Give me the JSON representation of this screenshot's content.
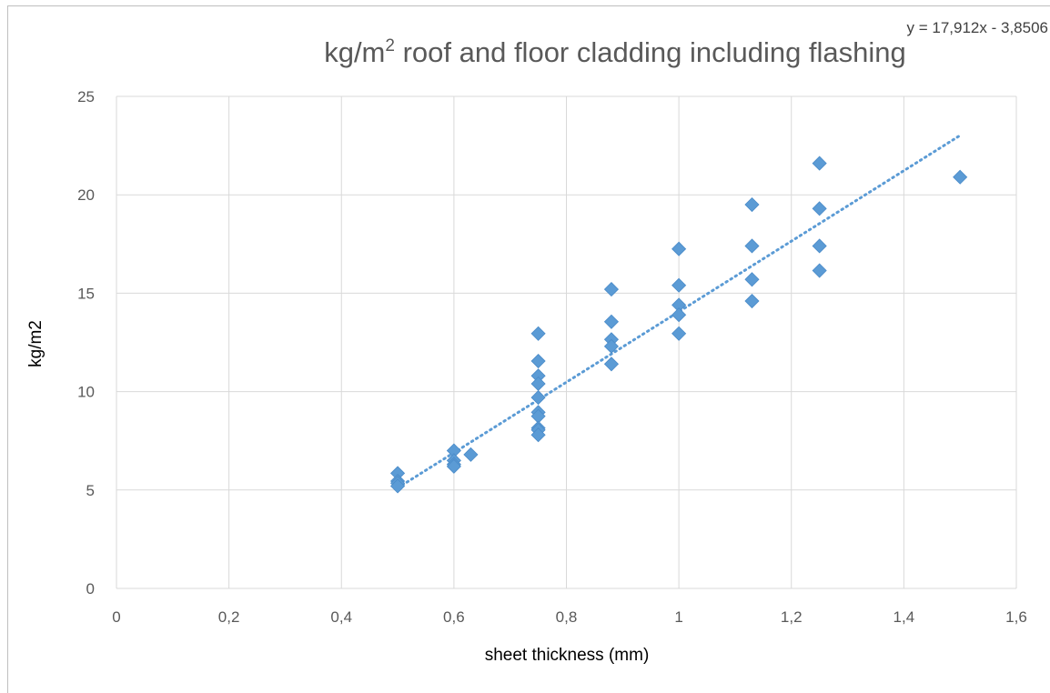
{
  "chart_data": {
    "type": "scatter",
    "title_main": "kg/m",
    "title_sup": "2",
    "title_rest": " roof and floor cladding including flashing",
    "trendline_label": "y = 17,912x - 3,8506",
    "xlabel": "sheet thickness (mm)",
    "ylabel": "kg/m2",
    "xlim": [
      0,
      1.6
    ],
    "ylim": [
      0,
      25
    ],
    "x_ticks": [
      0,
      0.2,
      0.4,
      0.6,
      0.8,
      1,
      1.2,
      1.4,
      1.6
    ],
    "x_tick_labels": [
      "0",
      "0,2",
      "0,4",
      "0,6",
      "0,8",
      "1",
      "1,2",
      "1,4",
      "1,6"
    ],
    "y_ticks": [
      0,
      5,
      10,
      15,
      20,
      25
    ],
    "y_tick_labels": [
      "0",
      "5",
      "10",
      "15",
      "20",
      "25"
    ],
    "grid": true,
    "marker": "diamond",
    "series_color": "#5b9bd5",
    "trendline": {
      "slope": 17.912,
      "intercept": -3.8506,
      "x_range": [
        0.5,
        1.5
      ],
      "style": "dotted"
    },
    "points": [
      {
        "x": 0.5,
        "y": 5.85
      },
      {
        "x": 0.5,
        "y": 5.45
      },
      {
        "x": 0.5,
        "y": 5.35
      },
      {
        "x": 0.5,
        "y": 5.2
      },
      {
        "x": 0.6,
        "y": 7.0
      },
      {
        "x": 0.6,
        "y": 6.5
      },
      {
        "x": 0.6,
        "y": 6.3
      },
      {
        "x": 0.6,
        "y": 6.2
      },
      {
        "x": 0.63,
        "y": 6.8
      },
      {
        "x": 0.75,
        "y": 12.95
      },
      {
        "x": 0.75,
        "y": 11.55
      },
      {
        "x": 0.75,
        "y": 10.8
      },
      {
        "x": 0.75,
        "y": 10.4
      },
      {
        "x": 0.75,
        "y": 9.7
      },
      {
        "x": 0.75,
        "y": 8.95
      },
      {
        "x": 0.75,
        "y": 8.75
      },
      {
        "x": 0.75,
        "y": 8.15
      },
      {
        "x": 0.75,
        "y": 8.05
      },
      {
        "x": 0.75,
        "y": 7.8
      },
      {
        "x": 0.88,
        "y": 15.2
      },
      {
        "x": 0.88,
        "y": 13.55
      },
      {
        "x": 0.88,
        "y": 12.65
      },
      {
        "x": 0.88,
        "y": 12.3
      },
      {
        "x": 0.88,
        "y": 11.4
      },
      {
        "x": 1.0,
        "y": 17.25
      },
      {
        "x": 1.0,
        "y": 15.4
      },
      {
        "x": 1.0,
        "y": 14.4
      },
      {
        "x": 1.0,
        "y": 13.9
      },
      {
        "x": 1.0,
        "y": 12.95
      },
      {
        "x": 1.13,
        "y": 19.5
      },
      {
        "x": 1.13,
        "y": 17.4
      },
      {
        "x": 1.13,
        "y": 15.7
      },
      {
        "x": 1.13,
        "y": 14.6
      },
      {
        "x": 1.25,
        "y": 21.6
      },
      {
        "x": 1.25,
        "y": 19.3
      },
      {
        "x": 1.25,
        "y": 17.4
      },
      {
        "x": 1.25,
        "y": 16.15
      },
      {
        "x": 1.5,
        "y": 20.9
      }
    ]
  }
}
